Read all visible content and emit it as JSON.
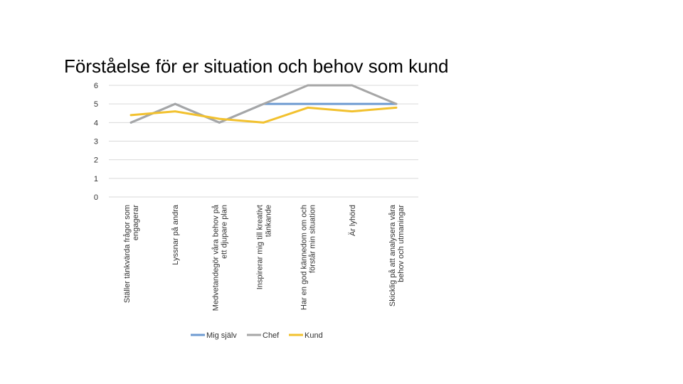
{
  "slide": {
    "title": "Förståelse för er situation och behov som kund"
  },
  "chart_data": {
    "type": "line",
    "title": "Förståelse för er situation och behov som kund",
    "xlabel": "",
    "ylabel": "",
    "ylim": [
      0,
      6
    ],
    "yticks": [
      "0",
      "1",
      "2",
      "3",
      "4",
      "5",
      "6"
    ],
    "grid": "horizontal",
    "legend_position": "bottom",
    "categories": [
      [
        "Ställer tänkvärda frågor som",
        "engagerar"
      ],
      [
        "Lyssnar på andra"
      ],
      [
        "Medvetandegör våra behov på",
        "ett djupare plan"
      ],
      [
        "Inspirerar mig till kreativt",
        "tänkande"
      ],
      [
        "Har en god kännedom om och",
        "förstår min situation"
      ],
      [
        "Är lyhörd"
      ],
      [
        "Skicklig på att analysera våra",
        "behov och utmaningar"
      ]
    ],
    "series": [
      {
        "name": "Mig själv",
        "color": "#6e9bd1",
        "values": [
          4,
          5,
          4,
          5,
          5,
          5,
          5
        ]
      },
      {
        "name": "Chef",
        "color": "#a6a6a6",
        "values": [
          4,
          5,
          4,
          5,
          6,
          6,
          5
        ]
      },
      {
        "name": "Kund",
        "color": "#f2c12e",
        "values": [
          4.4,
          4.6,
          4.2,
          4.0,
          4.8,
          4.6,
          4.8
        ]
      }
    ]
  }
}
